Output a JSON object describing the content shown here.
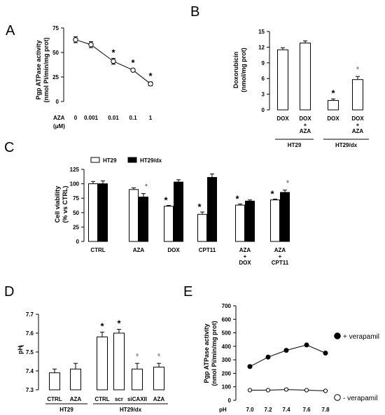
{
  "panels": {
    "A": "A",
    "B": "B",
    "C": "C",
    "D": "D",
    "E": "E"
  },
  "chart_data": [
    {
      "panel": "A",
      "type": "line",
      "ylabel_lines": [
        "Pgp ATPase activity",
        "(nmol Pi/min/mg prot)"
      ],
      "xlabel_lines": [
        "AZA",
        "(μM)"
      ],
      "categories": [
        "0",
        "0.001",
        "0.01",
        "0.1",
        "1"
      ],
      "values": [
        63,
        58,
        41,
        32,
        18
      ],
      "errors": [
        3,
        3,
        3,
        1.5,
        2
      ],
      "significance": [
        "",
        "",
        "*",
        "*",
        "*"
      ],
      "ylim": [
        0,
        75
      ],
      "yticks": [
        0,
        25,
        50,
        75
      ],
      "color": "#000000"
    },
    {
      "panel": "B",
      "type": "bar",
      "ylabel_lines": [
        "Doxorubicin",
        "(nmol/mg prot)"
      ],
      "categories": [
        [
          "DOX"
        ],
        [
          "DOX",
          "+",
          "AZA"
        ],
        [
          "DOX"
        ],
        [
          "DOX",
          "+",
          "AZA"
        ]
      ],
      "values": [
        11.5,
        12.8,
        1.8,
        5.8
      ],
      "errors": [
        0.4,
        0.4,
        0.3,
        0.6
      ],
      "significance": [
        "",
        "",
        "*",
        "°"
      ],
      "groups": [
        {
          "label": "HT29",
          "span": [
            0,
            1
          ]
        },
        {
          "label": "HT29/dx",
          "span": [
            2,
            3
          ]
        }
      ],
      "ylim": [
        0,
        15
      ],
      "yticks": [
        0,
        3,
        6,
        9,
        12,
        15
      ],
      "bar_fill": "#ffffff"
    },
    {
      "panel": "C",
      "type": "bar",
      "ylabel_lines": [
        "Cell viability",
        "(% vs CTRL)"
      ],
      "categories": [
        [
          "CTRL"
        ],
        [
          "AZA"
        ],
        [
          "DOX"
        ],
        [
          "CPT11"
        ],
        [
          "AZA",
          "+",
          "DOX"
        ],
        [
          "AZA",
          "+",
          "CPT11"
        ]
      ],
      "series": [
        {
          "name": "HT29",
          "values": [
            100,
            90,
            61,
            47,
            63,
            72
          ],
          "errors": [
            4,
            3,
            1.5,
            4,
            2,
            1.5
          ],
          "significance": [
            "",
            "",
            "*",
            "*",
            "*",
            "*"
          ],
          "fill": "#ffffff"
        },
        {
          "name": "HT29/dx",
          "values": [
            100,
            77,
            103,
            111,
            70,
            85
          ],
          "errors": [
            5,
            6,
            4,
            6,
            2,
            4
          ],
          "significance": [
            "",
            "°",
            "",
            "",
            "",
            "°"
          ],
          "fill": "#000000"
        }
      ],
      "ylim": [
        0,
        125
      ],
      "yticks": [
        0,
        25,
        50,
        75,
        100,
        125
      ],
      "legend": "top-left"
    },
    {
      "panel": "D",
      "type": "bar",
      "ylabel": "pH",
      "ylabel_subscript": "i",
      "categories": [
        [
          "CTRL"
        ],
        [
          "AZA"
        ],
        [
          "CTRL"
        ],
        [
          "scr"
        ],
        [
          "siCAXII"
        ],
        [
          "AZA"
        ]
      ],
      "values": [
        7.39,
        7.41,
        7.58,
        7.6,
        7.41,
        7.42
      ],
      "errors": [
        0.02,
        0.03,
        0.025,
        0.02,
        0.03,
        0.02
      ],
      "significance": [
        "",
        "",
        "*",
        "*",
        "°",
        "°"
      ],
      "groups": [
        {
          "label": "HT29",
          "span": [
            0,
            1
          ]
        },
        {
          "label": "HT29/dx",
          "span": [
            2,
            5
          ]
        }
      ],
      "ylim": [
        7.3,
        7.7
      ],
      "yticks": [
        "7.3",
        "7.4",
        "7.5",
        "7.6",
        "7.7"
      ],
      "bar_fill": "#ffffff"
    },
    {
      "panel": "E",
      "type": "line",
      "ylabel_lines": [
        "Pgp ATPase activity",
        "(nmol Pi/min/mg prot)"
      ],
      "xlabel": "pH",
      "x": [
        "7.0",
        "7.2",
        "7.4",
        "7.6",
        "7.8"
      ],
      "series": [
        {
          "name": "+ verapamil",
          "values": [
            250,
            320,
            370,
            410,
            350
          ],
          "marker": "filled"
        },
        {
          "name": "- verapamil",
          "values": [
            75,
            75,
            80,
            75,
            70
          ],
          "marker": "open"
        }
      ],
      "ylim": [
        0,
        700
      ],
      "yticks": [
        0,
        100,
        200,
        300,
        400,
        500,
        600,
        700
      ],
      "legend": "right"
    }
  ]
}
